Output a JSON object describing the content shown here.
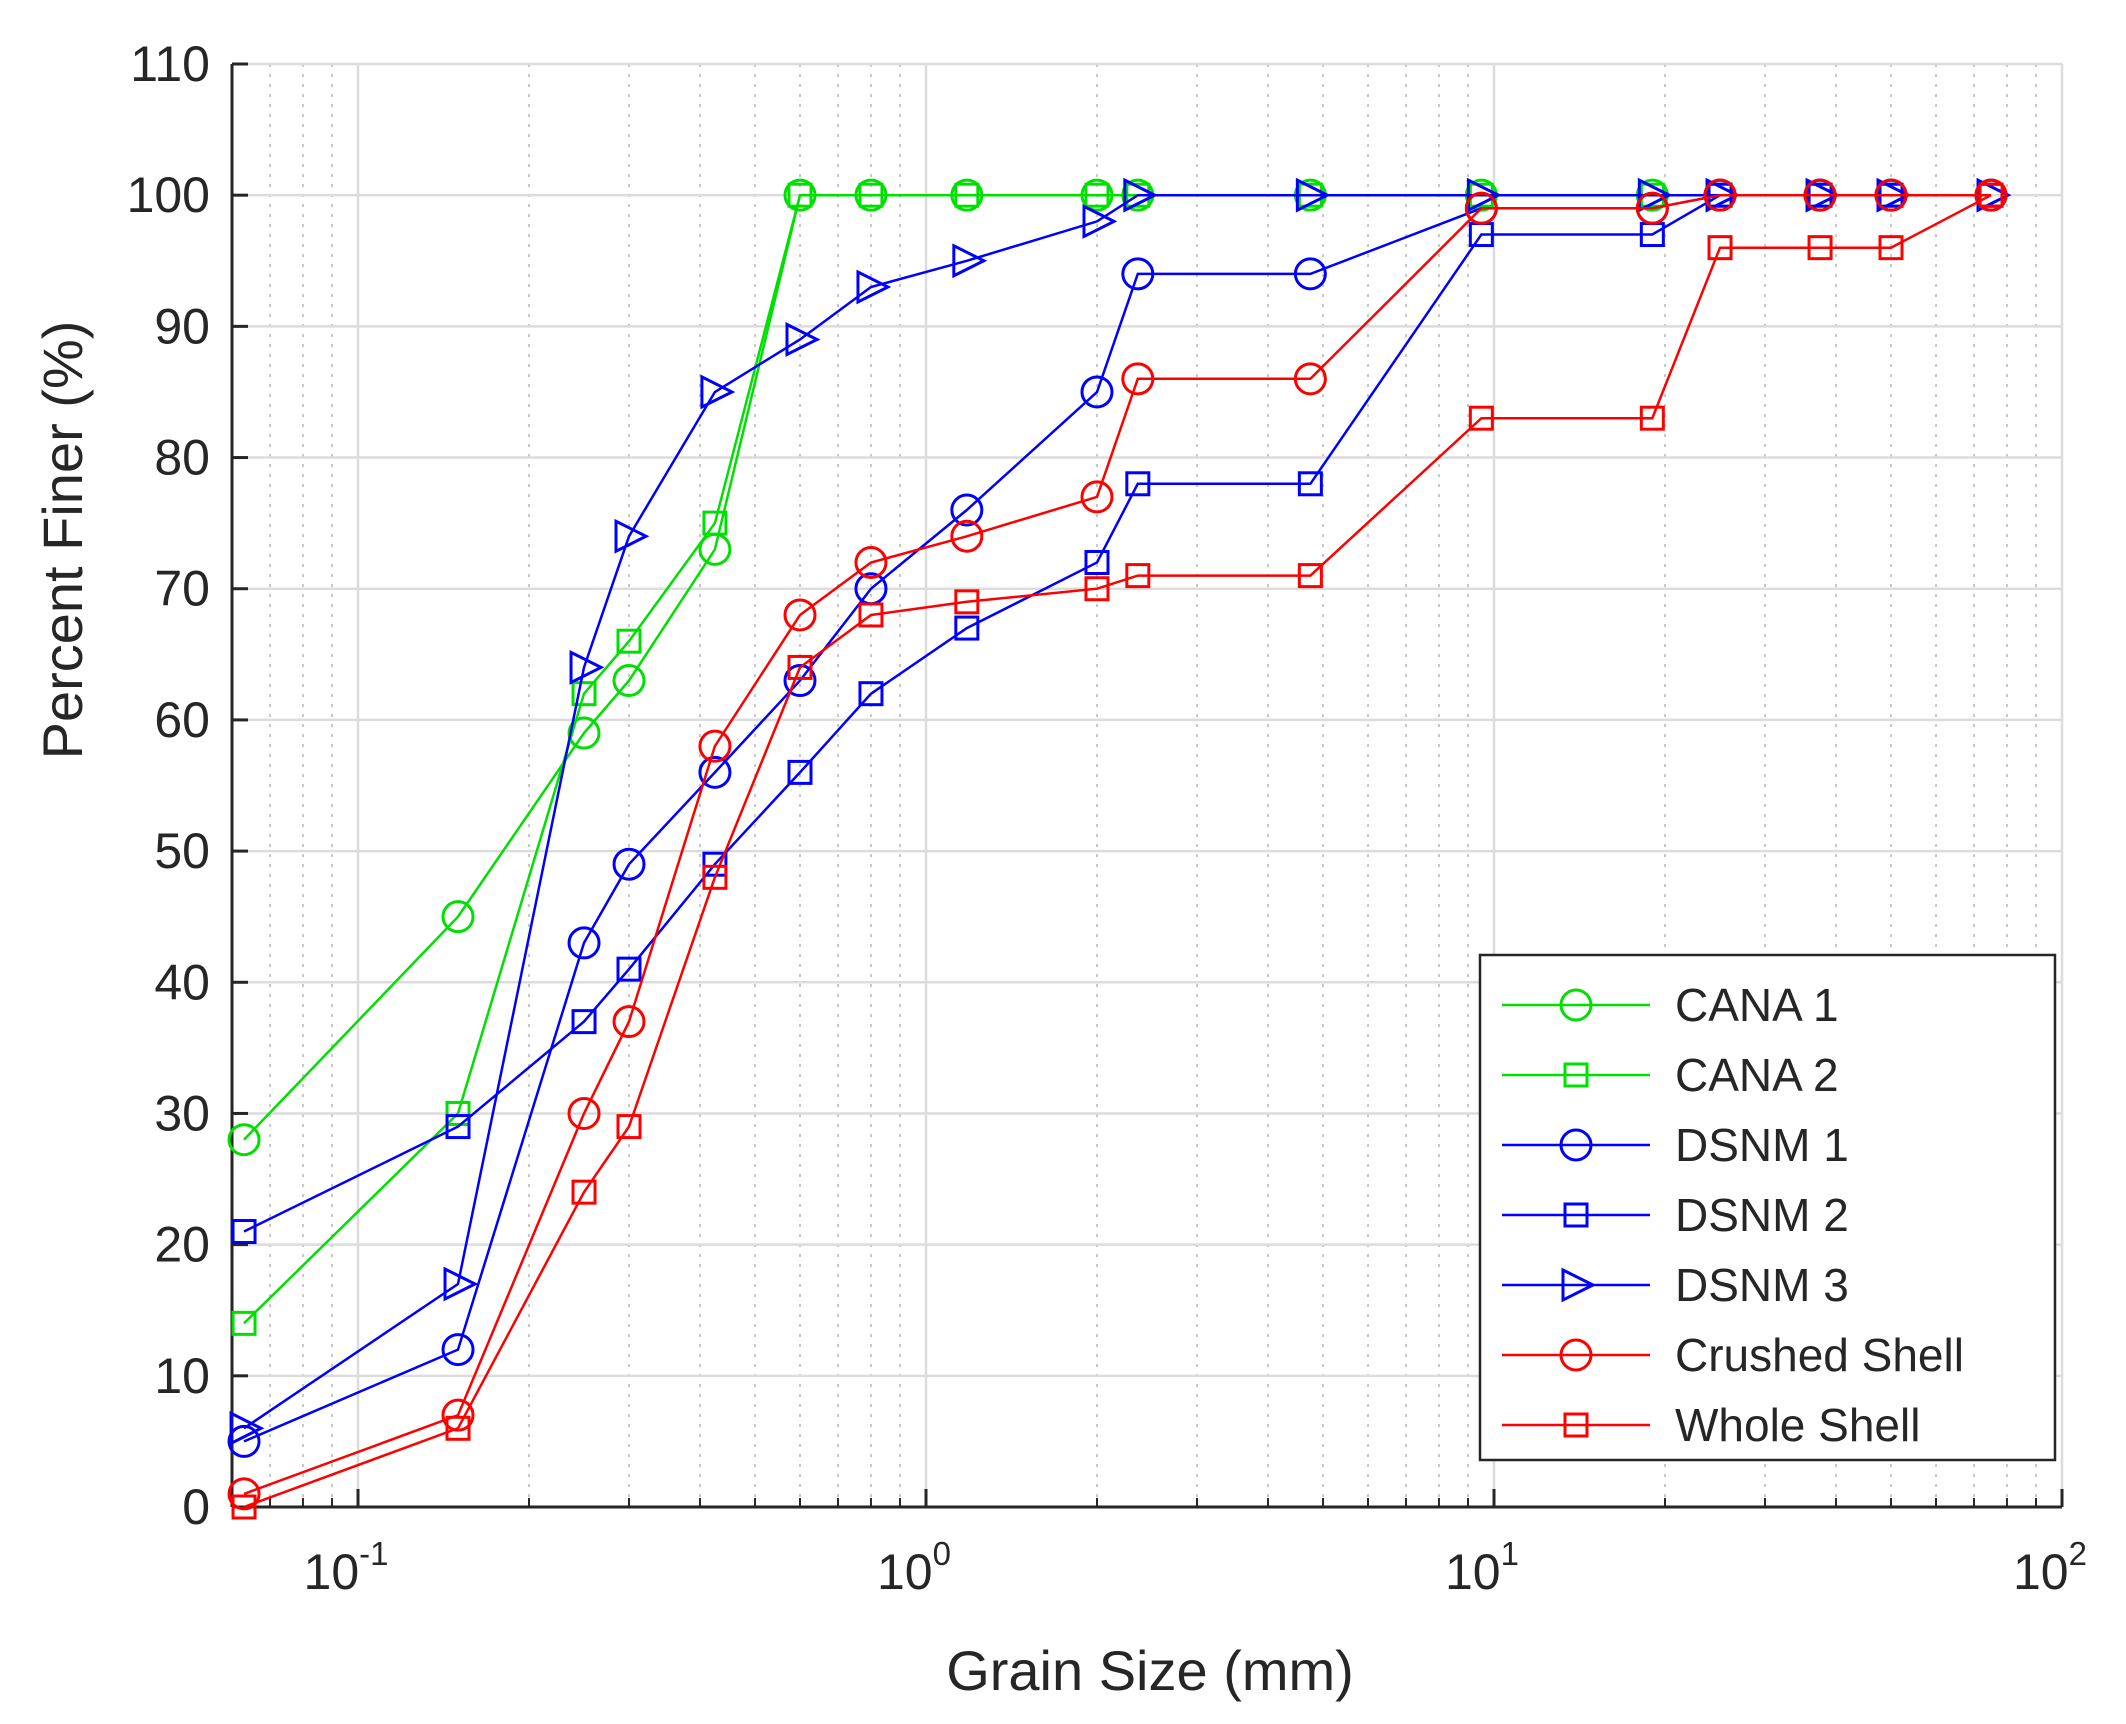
{
  "chart_data": {
    "type": "line",
    "title": "",
    "xlabel": "Grain Size (mm)",
    "ylabel": "Percent Finer (%)",
    "xscale": "log",
    "xlim": [
      0.06,
      100
    ],
    "ylim": [
      0,
      110
    ],
    "grid": true,
    "minor_grid": true,
    "legend_position": "bottom-right",
    "x_ticks": [
      {
        "value": 0.1,
        "base": "10",
        "exp": "-1"
      },
      {
        "value": 1,
        "base": "10",
        "exp": "0"
      },
      {
        "value": 10,
        "base": "10",
        "exp": "1"
      },
      {
        "value": 100,
        "base": "10",
        "exp": "2"
      }
    ],
    "y_ticks": [
      0,
      10,
      20,
      30,
      40,
      50,
      60,
      70,
      80,
      90,
      100,
      110
    ],
    "series": [
      {
        "name": "CANA 1",
        "color": "#00e000",
        "marker": "circle",
        "x": [
          0.063,
          0.15,
          0.25,
          0.3,
          0.425,
          0.6,
          0.8,
          1.18,
          2.0,
          2.36,
          4.75,
          9.5,
          19,
          25,
          37.5,
          50,
          75
        ],
        "y": [
          28,
          45,
          59,
          63,
          73,
          100,
          100,
          100,
          100,
          100,
          100,
          100,
          100,
          100,
          100,
          100,
          100
        ]
      },
      {
        "name": "CANA 2",
        "color": "#00e000",
        "marker": "square",
        "x": [
          0.063,
          0.15,
          0.25,
          0.3,
          0.425,
          0.6,
          0.8,
          1.18,
          2.0,
          2.36,
          4.75,
          9.5,
          19,
          25,
          37.5,
          50,
          75
        ],
        "y": [
          14,
          30,
          62,
          66,
          75,
          100,
          100,
          100,
          100,
          100,
          100,
          100,
          100,
          100,
          100,
          100,
          100
        ]
      },
      {
        "name": "DSNM 1",
        "color": "#0000ff",
        "marker": "circle",
        "x": [
          0.063,
          0.15,
          0.25,
          0.3,
          0.425,
          0.6,
          0.8,
          1.18,
          2.0,
          2.36,
          4.75,
          9.5,
          19,
          25,
          37.5,
          50,
          75
        ],
        "y": [
          5,
          12,
          43,
          49,
          56,
          63,
          70,
          76,
          85,
          94,
          94,
          99,
          99,
          100,
          100,
          100,
          100
        ]
      },
      {
        "name": "DSNM 2",
        "color": "#0000ff",
        "marker": "square",
        "x": [
          0.063,
          0.15,
          0.25,
          0.3,
          0.425,
          0.6,
          0.8,
          1.18,
          2.0,
          2.36,
          4.75,
          9.5,
          19,
          25,
          37.5,
          50,
          75
        ],
        "y": [
          21,
          29,
          37,
          41,
          49,
          56,
          62,
          67,
          72,
          78,
          78,
          97,
          97,
          100,
          100,
          100,
          100
        ]
      },
      {
        "name": "DSNM 3",
        "color": "#0000ff",
        "marker": "triangle-right",
        "x": [
          0.063,
          0.15,
          0.25,
          0.3,
          0.425,
          0.6,
          0.8,
          1.18,
          2.0,
          2.36,
          4.75,
          9.5,
          19,
          25,
          37.5,
          50,
          75
        ],
        "y": [
          6,
          17,
          64,
          74,
          85,
          89,
          93,
          95,
          98,
          100,
          100,
          100,
          100,
          100,
          100,
          100,
          100
        ]
      },
      {
        "name": "Crushed Shell",
        "color": "#ff0000",
        "marker": "circle",
        "x": [
          0.063,
          0.15,
          0.25,
          0.3,
          0.425,
          0.6,
          0.8,
          1.18,
          2.0,
          2.36,
          4.75,
          9.5,
          19,
          25,
          37.5,
          50,
          75
        ],
        "y": [
          1,
          7,
          30,
          37,
          58,
          68,
          72,
          74,
          77,
          86,
          86,
          99,
          99,
          100,
          100,
          100,
          100
        ]
      },
      {
        "name": "Whole Shell",
        "color": "#ff0000",
        "marker": "square",
        "x": [
          0.063,
          0.15,
          0.25,
          0.3,
          0.425,
          0.6,
          0.8,
          1.18,
          2.0,
          2.36,
          4.75,
          9.5,
          19,
          25,
          37.5,
          50,
          75
        ],
        "y": [
          0,
          6,
          24,
          29,
          48,
          64,
          68,
          69,
          70,
          71,
          71,
          83,
          83,
          96,
          96,
          96,
          100
        ]
      }
    ]
  }
}
